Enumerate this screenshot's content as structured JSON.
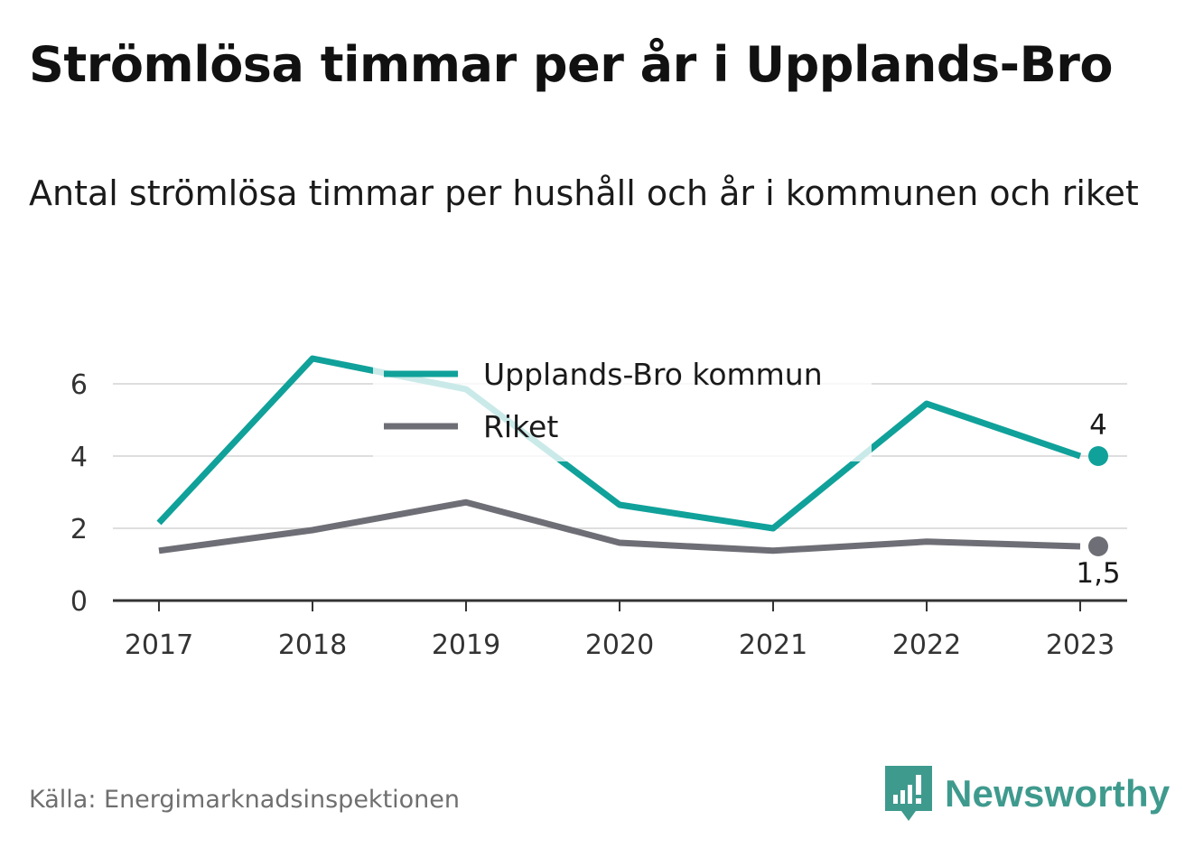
{
  "title": "Strömlösa timmar per år i Upplands-Bro",
  "subtitle": "Antal strömlösa timmar per hushåll och år i kommunen och riket",
  "source": "Källa: Energimarknadsinspektionen",
  "brand": {
    "name": "Newsworthy",
    "icon": "newsworthy-logo-icon",
    "color": "#3f9a8e"
  },
  "chart_data": {
    "type": "line",
    "x": [
      "2017",
      "2018",
      "2019",
      "2020",
      "2021",
      "2022",
      "2023"
    ],
    "ylim": [
      0,
      7
    ],
    "yticks": [
      0,
      2,
      4,
      6
    ],
    "grid": true,
    "legend_position": "top-center",
    "series": [
      {
        "name": "Upplands-Bro kommun",
        "color": "#10a19a",
        "values": [
          2.15,
          6.7,
          5.85,
          2.65,
          2.0,
          5.45,
          4.0
        ],
        "end_label": "4"
      },
      {
        "name": "Riket",
        "color": "#6e6e76",
        "values": [
          1.38,
          1.95,
          2.72,
          1.6,
          1.38,
          1.63,
          1.5
        ],
        "end_label": "1,5"
      }
    ]
  }
}
